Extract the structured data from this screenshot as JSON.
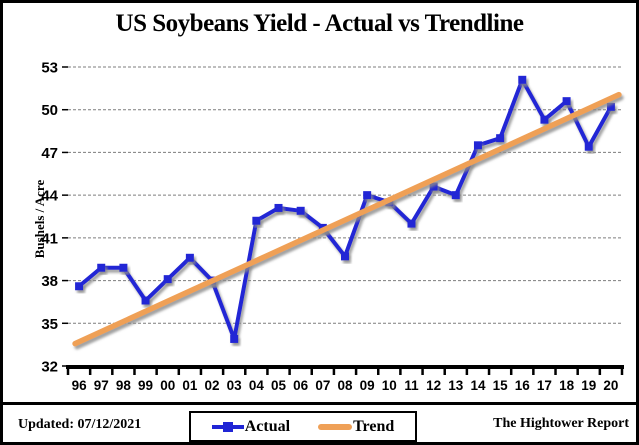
{
  "title": "US Soybeans Yield - Actual vs Trendline",
  "y_axis": {
    "label": "Bushels / Acre"
  },
  "footer": {
    "updated": "Updated: 07/12/2021",
    "source": "The Hightower Report"
  },
  "legend": {
    "actual_label": "Actual",
    "trend_label": "Trend"
  },
  "colors": {
    "actual": "#2025d5",
    "trend": "#efa057",
    "gridline": "#7d7d7d",
    "axis": "#000000"
  },
  "chart_data": {
    "type": "line",
    "title": "US Soybeans Yield - Actual vs Trendline",
    "xlabel": "",
    "ylabel": "Bushels / Acre",
    "ylim": [
      32,
      53
    ],
    "y_ticks": [
      32,
      35,
      38,
      41,
      44,
      47,
      50,
      53
    ],
    "grid": true,
    "legend_position": "bottom",
    "categories": [
      "96",
      "97",
      "98",
      "99",
      "00",
      "01",
      "02",
      "03",
      "04",
      "05",
      "06",
      "07",
      "08",
      "09",
      "10",
      "11",
      "12",
      "13",
      "14",
      "15",
      "16",
      "17",
      "18",
      "19",
      "20"
    ],
    "series": [
      {
        "name": "Actual",
        "type": "line",
        "marker": "square",
        "color": "#2025d5",
        "values": [
          37.6,
          38.9,
          38.9,
          36.6,
          38.1,
          39.6,
          38.0,
          33.9,
          42.2,
          43.1,
          42.9,
          41.7,
          39.7,
          44.0,
          43.5,
          42.0,
          44.6,
          44.0,
          47.5,
          48.0,
          52.1,
          49.3,
          50.6,
          47.4,
          50.2
        ]
      },
      {
        "name": "Trend",
        "type": "line",
        "marker": "none",
        "color": "#efa057",
        "trend_endpoints": {
          "start_category": "96",
          "start_value": 33.7,
          "end_category": "20",
          "end_value": 50.8
        }
      }
    ]
  }
}
